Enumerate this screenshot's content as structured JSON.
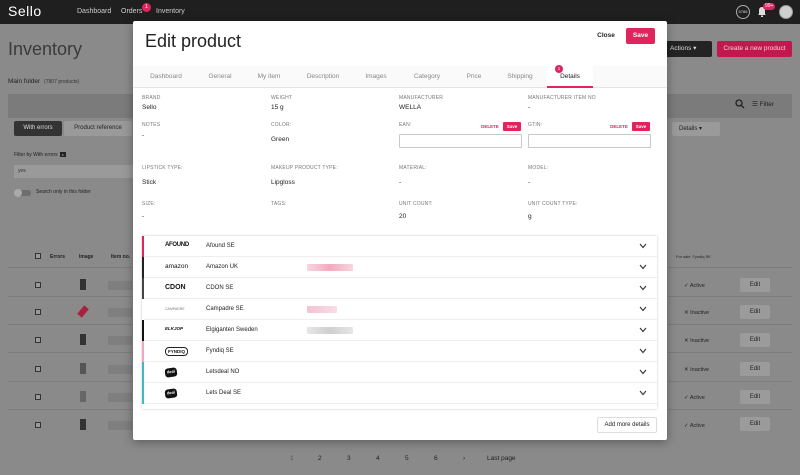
{
  "topnav": {
    "logo": "Sello",
    "items": [
      "Dashboard",
      "Orders",
      "Inventory"
    ],
    "orders_badge": "1",
    "bell_badge": "99+",
    "sync_label": "5786"
  },
  "background": {
    "title": "Inventory",
    "folder": "Main folder",
    "folder_count": "(7807 products)",
    "actions_label": "Actions",
    "create_label": "Create a new product",
    "filter_label": "Filter",
    "tabs": [
      "With errors",
      "Product reference"
    ],
    "details_label": "Details",
    "filter_by": "Filter by With errors",
    "filter_badge": "x",
    "filter_value": "yes",
    "search_folder": "Search only in this folder",
    "columns": [
      "Errors",
      "Image",
      "Item no."
    ],
    "for_sale": "For sale",
    "for_sale_sub": "Fyndiq SK",
    "rows": [
      {
        "status": "Active",
        "edit": "Edit"
      },
      {
        "status": "Inactive",
        "edit": "Edit"
      },
      {
        "status": "Inactive",
        "edit": "Edit"
      },
      {
        "status": "Inactive",
        "edit": "Edit"
      },
      {
        "status": "Active",
        "edit": "Edit"
      },
      {
        "status": "Active",
        "edit": "Edit"
      }
    ],
    "pager": [
      "1",
      "2",
      "3",
      "4",
      "5",
      "6"
    ],
    "last_page": "Last page"
  },
  "modal": {
    "title": "Edit product",
    "close_label": "Close",
    "save_label": "Save",
    "tabs": [
      "Dashboard",
      "General",
      "My item",
      "Description",
      "Images",
      "Category",
      "Price",
      "Shipping",
      "Details"
    ],
    "details_badge": "1",
    "fields": {
      "brand": {
        "label": "BRAND",
        "value": "Sello"
      },
      "weight": {
        "label": "WEIGHT",
        "value": "15 g"
      },
      "manufacturer": {
        "label": "MANUFACTURER",
        "value": "WELLA"
      },
      "manufacturer_item_no": {
        "label": "MANUFACTURER ITEM NO",
        "value": "-"
      },
      "notes": {
        "label": "NOTES",
        "value": "-"
      },
      "color": {
        "label": "COLOR:",
        "value": "Green"
      },
      "ean": {
        "label": "EAN:",
        "value": ""
      },
      "gtin": {
        "label": "GTIN:",
        "value": ""
      },
      "lipstick_type": {
        "label": "LIPSTICK TYPE:",
        "value": "Stick"
      },
      "makeup_product_type": {
        "label": "MAKEUP PRODUCT TYPE:",
        "value": "Lipgloss"
      },
      "material": {
        "label": "MATERIAL:",
        "value": "-"
      },
      "model": {
        "label": "MODEL:",
        "value": "-"
      },
      "size": {
        "label": "SIZE:",
        "value": "-"
      },
      "tags": {
        "label": "TAGS:",
        "value": ""
      },
      "unit_count": {
        "label": "UNIT COUNT:",
        "value": "20"
      },
      "unit_count_type": {
        "label": "UNIT COUNT TYPE:",
        "value": "g"
      }
    },
    "delete_label": "DELETE",
    "mini_save_label": "Save",
    "channels": [
      {
        "logo": "AFOUND",
        "name": "Afound SE",
        "stripe": "#e0245e"
      },
      {
        "logo": "amazon",
        "name": "Amazon UK",
        "stripe": "#222222"
      },
      {
        "logo": "CDON",
        "name": "CDON SE",
        "stripe": "#444444"
      },
      {
        "logo": "CAMPADRE",
        "name": "Campadre SE",
        "stripe": "#ffffff"
      },
      {
        "logo": "ELKJOP",
        "name": "Elgiganten Sweden",
        "stripe": "#111111"
      },
      {
        "logo": "FYNDIQ",
        "name": "Fyndiq SE",
        "stripe": "#f4a6bd"
      },
      {
        "logo": "deal",
        "name": "Letsdeal NO",
        "stripe": "#3fbac2"
      },
      {
        "logo": "deal",
        "name": "Lets Deal SE",
        "stripe": "#3fbac2"
      }
    ],
    "add_more_label": "Add more details"
  }
}
